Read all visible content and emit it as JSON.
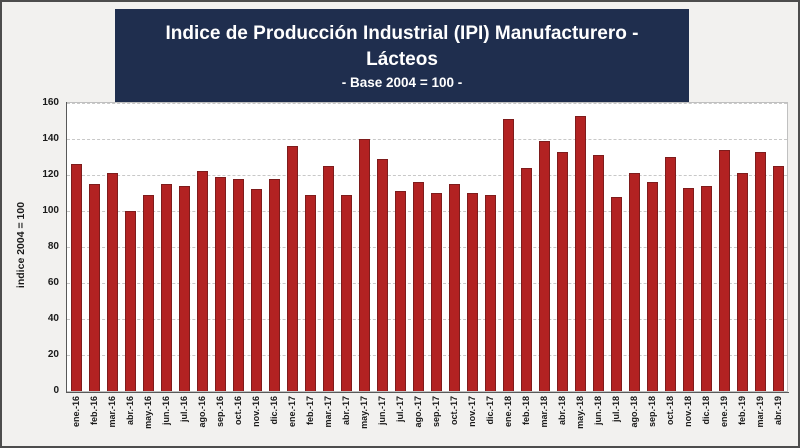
{
  "window": {
    "background_color": "#f2f1ef",
    "frame_border_color": "#4d4d4d"
  },
  "chart_data": {
    "type": "bar",
    "title": "Indice de Producción Industrial (IPI) Manufacturero - Lácteos",
    "subtitle": "- Base 2004 = 100 -",
    "ylabel": "indice 2004 = 100",
    "xlabel": "",
    "ylim": [
      0,
      160
    ],
    "ytick_step": 20,
    "grid": "horizontal dashed",
    "legend": "none",
    "title_bg_color": "#1f2e4e",
    "title_text_color": "#ffffff",
    "bar_color": "#b22222",
    "bar_border_color": "#7e1c1c",
    "categories": [
      "ene.-16",
      "feb.-16",
      "mar.-16",
      "abr.-16",
      "may.-16",
      "jun.-16",
      "jul.-16",
      "ago.-16",
      "sep.-16",
      "oct.-16",
      "nov.-16",
      "dic.-16",
      "ene.-17",
      "feb.-17",
      "mar.-17",
      "abr.-17",
      "may.-17",
      "jun.-17",
      "jul.-17",
      "ago.-17",
      "sep.-17",
      "oct.-17",
      "nov.-17",
      "dic.-17",
      "ene.-18",
      "feb.-18",
      "mar.-18",
      "abr.-18",
      "may.-18",
      "jun.-18",
      "jul.-18",
      "ago.-18",
      "sep.-18",
      "oct.-18",
      "nov.-18",
      "dic.-18",
      "ene.-19",
      "feb.-19",
      "mar.-19",
      "abr.-19"
    ],
    "values": [
      126,
      115,
      121,
      100,
      109,
      115,
      114,
      122,
      119,
      118,
      112,
      118,
      136,
      109,
      125,
      109,
      140,
      129,
      111,
      116,
      110,
      115,
      110,
      109,
      151,
      124,
      139,
      133,
      153,
      131,
      108,
      121,
      116,
      130,
      113,
      114,
      134,
      121,
      133,
      125
    ]
  }
}
